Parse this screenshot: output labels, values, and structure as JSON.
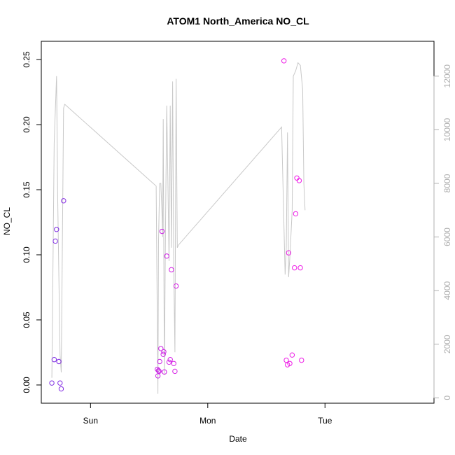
{
  "chart_data": {
    "type": "scatter",
    "title": "ATOM1 North_America NO_CL",
    "xlabel": "Date",
    "ylabel": "NO_CL",
    "x_ticks": [
      {
        "label": "Sun",
        "x": 1.0
      },
      {
        "label": "Mon",
        "x": 2.0
      },
      {
        "label": "Tue",
        "x": 3.0
      }
    ],
    "xlim": [
      0.58,
      3.93
    ],
    "ylim": [
      -0.014,
      0.264
    ],
    "y_ticks": [
      0.0,
      0.05,
      0.1,
      0.15,
      0.2,
      0.25
    ],
    "y_tick_labels": [
      "0.00",
      "0.05",
      "0.10",
      "0.15",
      "0.20",
      "0.25"
    ],
    "y2lim": [
      -200,
      13300
    ],
    "y2_ticks": [
      0,
      2000,
      4000,
      6000,
      8000,
      10000,
      12000
    ],
    "y2_tick_labels": [
      "0",
      "2000",
      "4000",
      "6000",
      "8000",
      "10000",
      "12000"
    ],
    "grid": false,
    "series": [
      {
        "kind": "points",
        "color_scale": [
          "#7b2be2",
          "#ee1be6"
        ],
        "x": [
          0.67,
          0.69,
          0.7,
          0.71,
          0.73,
          0.74,
          0.75,
          0.77,
          1.57,
          1.575,
          1.58,
          1.585,
          1.59,
          1.6,
          1.61,
          1.62,
          1.625,
          1.63,
          1.65,
          1.67,
          1.68,
          1.69,
          1.71,
          1.72,
          1.73,
          2.65,
          2.67,
          2.68,
          2.69,
          2.7,
          2.72,
          2.74,
          2.75,
          2.76,
          2.78,
          2.79,
          2.8
        ],
        "y": [
          0.0015,
          0.0195,
          0.1105,
          0.1195,
          0.018,
          0.0015,
          -0.003,
          0.1415,
          0.012,
          0.007,
          0.011,
          0.0105,
          0.018,
          0.028,
          0.118,
          0.0235,
          0.0255,
          0.01,
          0.099,
          0.0175,
          0.0195,
          0.0885,
          0.0165,
          0.0105,
          0.076,
          0.249,
          0.019,
          0.0155,
          0.1015,
          0.0165,
          0.023,
          0.09,
          0.1315,
          0.159,
          0.157,
          0.09,
          0.019
        ]
      },
      {
        "kind": "line",
        "color": "#c8c8c8",
        "axis": "right",
        "x": [
          0.67,
          0.69,
          0.71,
          0.72,
          0.74,
          0.75,
          0.77,
          0.78,
          1.56,
          1.575,
          1.58,
          1.59,
          1.6,
          1.61,
          1.615,
          1.62,
          1.63,
          1.64,
          1.65,
          1.66,
          1.67,
          1.68,
          1.69,
          1.7,
          1.71,
          1.72,
          1.73,
          1.74,
          1.75,
          2.63,
          2.66,
          2.67,
          2.68,
          2.69,
          2.7,
          2.72,
          2.73,
          2.75,
          2.77,
          2.79,
          2.81,
          2.82,
          2.83
        ],
        "y": [
          750,
          9500,
          12000,
          7500,
          1600,
          950,
          10800,
          10950,
          7900,
          150,
          5900,
          8000,
          8000,
          6800,
          6000,
          10400,
          850,
          6500,
          10900,
          8000,
          5100,
          10900,
          5600,
          11800,
          4900,
          1700,
          11900,
          5600,
          5700,
          10100,
          4600,
          5600,
          9900,
          4500,
          5200,
          7000,
          12000,
          12200,
          12500,
          12400,
          11500,
          8000,
          7000
        ]
      }
    ]
  }
}
